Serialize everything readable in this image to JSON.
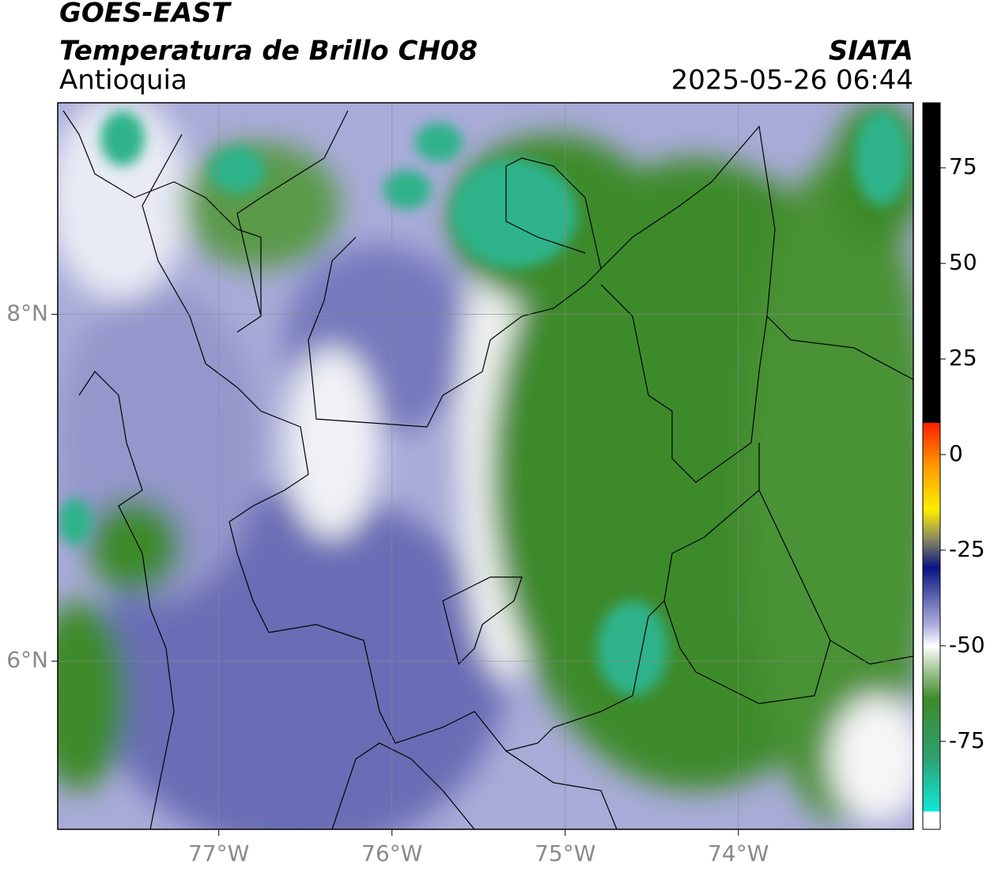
{
  "header": {
    "title": "GOES-EAST",
    "subtitle": "Temperatura de Brillo CH08",
    "region": "Antioquia",
    "source": "SIATA",
    "timestamp": "2025-05-26 06:44"
  },
  "map": {
    "xlim": [
      -77.93,
      -72.99
    ],
    "ylim": [
      5.03,
      9.22
    ],
    "xticks": [
      {
        "value": -77,
        "label": "77°W"
      },
      {
        "value": -76,
        "label": "76°W"
      },
      {
        "value": -75,
        "label": "75°W"
      },
      {
        "value": -74,
        "label": "74°W"
      }
    ],
    "yticks": [
      {
        "value": 8,
        "label": "8°N"
      },
      {
        "value": 6,
        "label": "6°N"
      }
    ],
    "grid": true
  },
  "colorbar": {
    "lim": [
      -98,
      92
    ],
    "ticks": [
      -75,
      -50,
      -25,
      0,
      25,
      50,
      75
    ]
  }
}
